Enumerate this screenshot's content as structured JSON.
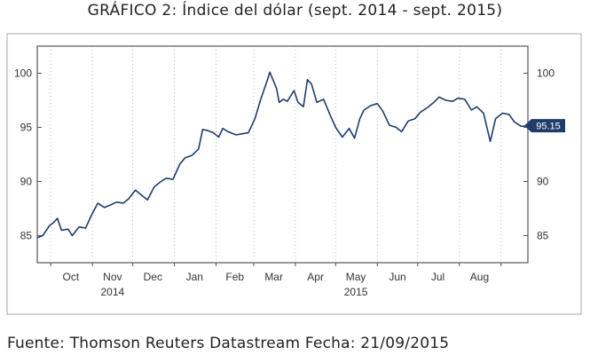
{
  "title": "GRÁFICO 2: Índice del dólar (sept. 2014 - sept. 2015)",
  "source_note": "Fuente: Thomson Reuters Datastream  Fecha: 21/09/2015",
  "colors": {
    "line": "#1f3d6b",
    "frame": "#555555",
    "grid": "#bbbbbb",
    "label_bg": "#1f3d6b"
  },
  "chart_data": {
    "type": "line",
    "title": "GRÁFICO 2: Índice del dólar (sept. 2014 - sept. 2015)",
    "xlabel": "",
    "ylabel": "",
    "ylim": [
      82.5,
      102.5
    ],
    "yticks": [
      85,
      90,
      95,
      100
    ],
    "y_axis_both_sides": true,
    "grid": "vertical dotted at month boundaries",
    "x_start": "2014-09-21",
    "x_end": "2015-09-21",
    "month_gridlines": [
      "2014-10-01",
      "2014-11-01",
      "2014-12-01",
      "2015-01-01",
      "2015-02-01",
      "2015-03-01",
      "2015-04-01",
      "2015-05-01",
      "2015-06-01",
      "2015-07-01",
      "2015-08-01",
      "2015-09-01"
    ],
    "month_labels": [
      {
        "label": "Oct",
        "date": "2014-10-16"
      },
      {
        "label": "Nov",
        "date": "2014-11-16"
      },
      {
        "label": "Dec",
        "date": "2014-12-16"
      },
      {
        "label": "Jan",
        "date": "2015-01-16"
      },
      {
        "label": "Feb",
        "date": "2015-02-15"
      },
      {
        "label": "Mar",
        "date": "2015-03-16"
      },
      {
        "label": "Apr",
        "date": "2015-04-16"
      },
      {
        "label": "May",
        "date": "2015-05-16"
      },
      {
        "label": "Jun",
        "date": "2015-06-16"
      },
      {
        "label": "Jul",
        "date": "2015-07-16"
      },
      {
        "label": "Aug",
        "date": "2015-08-16"
      }
    ],
    "year_labels": [
      {
        "label": "2014",
        "date": "2014-11-16"
      },
      {
        "label": "2015",
        "date": "2015-05-16"
      }
    ],
    "last_value_label": "95.15",
    "series": [
      {
        "name": "",
        "x": [
          "2014-09-21",
          "2014-09-25",
          "2014-09-30",
          "2014-10-03",
          "2014-10-06",
          "2014-10-09",
          "2014-10-14",
          "2014-10-17",
          "2014-10-22",
          "2014-10-27",
          "2014-10-31",
          "2014-11-05",
          "2014-11-10",
          "2014-11-14",
          "2014-11-19",
          "2014-11-24",
          "2014-11-28",
          "2014-12-03",
          "2014-12-08",
          "2014-12-12",
          "2014-12-17",
          "2014-12-22",
          "2014-12-26",
          "2014-12-31",
          "2015-01-05",
          "2015-01-09",
          "2015-01-14",
          "2015-01-19",
          "2015-01-22",
          "2015-01-26",
          "2015-01-30",
          "2015-02-03",
          "2015-02-06",
          "2015-02-10",
          "2015-02-16",
          "2015-02-20",
          "2015-02-25",
          "2015-03-02",
          "2015-03-06",
          "2015-03-11",
          "2015-03-13",
          "2015-03-16",
          "2015-03-18",
          "2015-03-20",
          "2015-03-23",
          "2015-03-26",
          "2015-03-31",
          "2015-04-03",
          "2015-04-07",
          "2015-04-10",
          "2015-04-13",
          "2015-04-17",
          "2015-04-22",
          "2015-04-27",
          "2015-05-01",
          "2015-05-06",
          "2015-05-11",
          "2015-05-15",
          "2015-05-19",
          "2015-05-22",
          "2015-05-27",
          "2015-06-01",
          "2015-06-05",
          "2015-06-10",
          "2015-06-15",
          "2015-06-19",
          "2015-06-24",
          "2015-06-29",
          "2015-07-03",
          "2015-07-08",
          "2015-07-13",
          "2015-07-17",
          "2015-07-22",
          "2015-07-27",
          "2015-07-31",
          "2015-08-05",
          "2015-08-10",
          "2015-08-14",
          "2015-08-19",
          "2015-08-24",
          "2015-08-28",
          "2015-09-02",
          "2015-09-07",
          "2015-09-11",
          "2015-09-16",
          "2015-09-21"
        ],
        "values": [
          84.8,
          85.0,
          85.9,
          86.2,
          86.6,
          85.5,
          85.6,
          85.0,
          85.8,
          85.7,
          86.8,
          88.0,
          87.6,
          87.8,
          88.1,
          88.0,
          88.4,
          89.2,
          88.7,
          88.3,
          89.5,
          90.0,
          90.3,
          90.2,
          91.6,
          92.2,
          92.4,
          93.0,
          94.8,
          94.7,
          94.5,
          94.1,
          94.9,
          94.6,
          94.3,
          94.4,
          94.5,
          95.8,
          97.5,
          99.3,
          100.1,
          99.2,
          98.6,
          97.3,
          97.6,
          97.4,
          98.4,
          97.3,
          96.9,
          99.4,
          99.0,
          97.3,
          97.6,
          96.1,
          95.0,
          94.1,
          94.9,
          94.0,
          95.8,
          96.6,
          97.0,
          97.2,
          96.5,
          95.2,
          95.0,
          94.6,
          95.6,
          95.8,
          96.4,
          96.8,
          97.3,
          97.8,
          97.5,
          97.4,
          97.7,
          97.6,
          96.6,
          96.9,
          96.3,
          93.7,
          95.8,
          96.3,
          96.2,
          95.5,
          95.1,
          95.15
        ]
      }
    ]
  }
}
